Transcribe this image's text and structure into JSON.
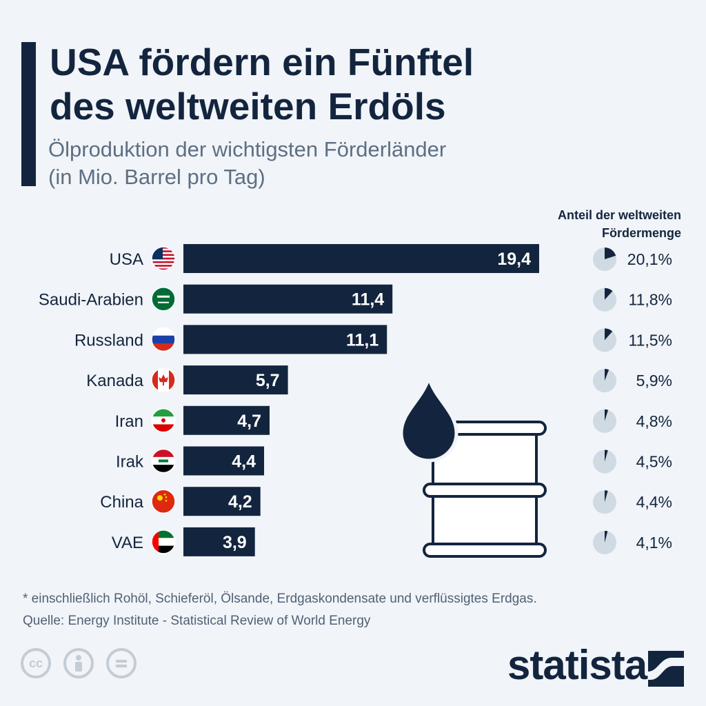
{
  "header": {
    "title_line1": "USA fördern ein Fünftel",
    "title_line2": "des weltweiten Erdöls",
    "subtitle_line1": "Ölproduktion der wichtigsten Förderländer",
    "subtitle_line2": "(in Mio. Barrel pro Tag)"
  },
  "share_header": {
    "line1": "Anteil der weltweiten",
    "line2": "Fördermenge"
  },
  "chart_data": {
    "type": "bar",
    "orientation": "horizontal",
    "categories": [
      "USA",
      "Saudi-Arabien",
      "Russland",
      "Kanada",
      "Iran",
      "Irak",
      "China",
      "VAE"
    ],
    "values": [
      19.4,
      11.4,
      11.1,
      5.7,
      4.7,
      4.4,
      4.2,
      3.9
    ],
    "value_labels": [
      "19,4",
      "11,4",
      "11,1",
      "5,7",
      "4,7",
      "4,4",
      "4,2",
      "3,9"
    ],
    "share_values": [
      20.1,
      11.8,
      11.5,
      5.9,
      4.8,
      4.5,
      4.4,
      4.1
    ],
    "share_labels": [
      "20,1%",
      "11,8%",
      "11,5%",
      "5,9%",
      "4,8%",
      "4,5%",
      "4,4%",
      "4,1%"
    ],
    "flags": [
      "flag-usa-icon",
      "flag-saudi-arabia-icon",
      "flag-russia-icon",
      "flag-canada-icon",
      "flag-iran-icon",
      "flag-iraq-icon",
      "flag-china-icon",
      "flag-uae-icon"
    ],
    "title": "USA fördern ein Fünftel des weltweiten Erdöls",
    "subtitle": "Ölproduktion der wichtigsten Förderländer (in Mio. Barrel pro Tag)",
    "grid": false,
    "bar_color": "#13253e",
    "pie_fill_color": "#13253e",
    "pie_bg_color": "#d0dae3"
  },
  "footer": {
    "note": "* einschließlich Rohöl, Schieferöl, Ölsande, Erdgaskondensate und verflüssigtes Erdgas.",
    "source": "Quelle: Energy Institute - Statistical Review of World Energy",
    "brand": "statista",
    "license_icons": [
      "cc-icon",
      "attribution-icon",
      "no-derivatives-icon"
    ]
  }
}
